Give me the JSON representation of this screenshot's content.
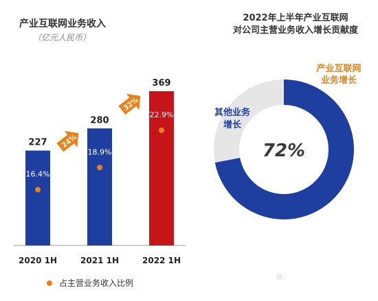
{
  "left_chart": {
    "title": "产业互联网业务收入",
    "subtitle": "（亿元人民币）",
    "legend_label": "占主营业务收入比例"
  },
  "right_chart": {
    "title_line1": "2022年上半年产业互联网",
    "title_line2": "对公司主营业务收入增长贡献度",
    "center_label": "72%",
    "label_main_line1": "产业互联网",
    "label_main_line2": "业务增长",
    "label_other_line1": "其他业务",
    "label_other_line2": "增长"
  },
  "colors": {
    "bar_blue": "#1f3fa0",
    "bar_red": "#c6141b",
    "accent_orange": "#e8821a",
    "donut_gray": "#e6e6e6"
  },
  "chart_data": [
    {
      "type": "bar",
      "title": "产业互联网业务收入",
      "ylabel": "亿元人民币",
      "categories": [
        "2020 1H",
        "2021 1H",
        "2022 1H"
      ],
      "values": [
        227,
        280,
        369
      ],
      "share_labels": [
        "16.4%",
        "18.9%",
        "22.9%"
      ],
      "growth_labels": [
        "24%",
        "32%"
      ],
      "ylim": [
        0,
        369
      ],
      "grid": false
    },
    {
      "type": "pie",
      "title": "2022年上半年产业互联网对公司主营业务收入增长贡献度",
      "categories": [
        "产业互联网业务增长",
        "其他业务增长"
      ],
      "values": [
        72,
        28
      ]
    }
  ]
}
